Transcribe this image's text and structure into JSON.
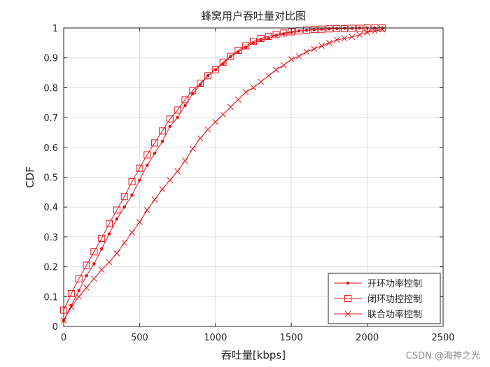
{
  "chart_data": {
    "type": "line",
    "title": "蜂窝用户吞吐量对比图",
    "xlabel": "吞吐量[kbps]",
    "ylabel": "CDF",
    "xlim": [
      0,
      2500
    ],
    "ylim": [
      0,
      1
    ],
    "xticks": [
      0,
      500,
      1000,
      1500,
      2000,
      2500
    ],
    "yticks": [
      0,
      0.1,
      0.2,
      0.3,
      0.4,
      0.5,
      0.6,
      0.7,
      0.8,
      0.9,
      1
    ],
    "grid": true,
    "legend_position": "bottom-right",
    "series": [
      {
        "name": "开环功率控制",
        "color": "#e8141c",
        "marker": "dot",
        "x": [
          0,
          50,
          100,
          150,
          200,
          250,
          300,
          350,
          400,
          450,
          500,
          550,
          600,
          650,
          700,
          750,
          800,
          850,
          900,
          950,
          1000,
          1050,
          1100,
          1150,
          1200,
          1250,
          1300,
          1350,
          1400,
          1450,
          1500,
          1550,
          1600,
          1650,
          1700,
          1750,
          1800,
          1850,
          1900,
          1950,
          2000,
          2050,
          2100
        ],
        "y": [
          0.02,
          0.07,
          0.12,
          0.17,
          0.21,
          0.26,
          0.31,
          0.36,
          0.4,
          0.44,
          0.49,
          0.54,
          0.58,
          0.62,
          0.67,
          0.7,
          0.74,
          0.78,
          0.81,
          0.84,
          0.86,
          0.88,
          0.905,
          0.92,
          0.935,
          0.95,
          0.96,
          0.965,
          0.975,
          0.98,
          0.985,
          0.99,
          0.992,
          0.994,
          0.996,
          0.997,
          0.998,
          0.999,
          0.999,
          1.0,
          1.0,
          1.0,
          1.0
        ]
      },
      {
        "name": "闭环功控控制",
        "color": "#e8141c",
        "marker": "square",
        "x": [
          0,
          50,
          100,
          150,
          200,
          250,
          300,
          350,
          400,
          450,
          500,
          550,
          600,
          650,
          700,
          750,
          800,
          850,
          900,
          950,
          1000,
          1050,
          1100,
          1150,
          1200,
          1250,
          1300,
          1350,
          1400,
          1450,
          1500,
          1550,
          1600,
          1650,
          1700,
          1750,
          1800,
          1850,
          1900,
          1950,
          2000,
          2050,
          2100
        ],
        "y": [
          0.055,
          0.11,
          0.16,
          0.205,
          0.25,
          0.295,
          0.345,
          0.39,
          0.435,
          0.485,
          0.53,
          0.575,
          0.615,
          0.655,
          0.695,
          0.725,
          0.76,
          0.79,
          0.815,
          0.84,
          0.86,
          0.885,
          0.905,
          0.925,
          0.94,
          0.955,
          0.965,
          0.972,
          0.978,
          0.983,
          0.987,
          0.99,
          0.993,
          0.995,
          0.996,
          0.997,
          0.998,
          0.998,
          0.999,
          0.999,
          1.0,
          1.0,
          1.0
        ]
      },
      {
        "name": "联合功率控制",
        "color": "#e8141c",
        "marker": "x",
        "x": [
          0,
          50,
          100,
          150,
          200,
          250,
          300,
          350,
          400,
          450,
          500,
          550,
          600,
          650,
          700,
          750,
          800,
          850,
          900,
          950,
          1000,
          1050,
          1100,
          1150,
          1200,
          1250,
          1300,
          1350,
          1400,
          1450,
          1500,
          1550,
          1600,
          1650,
          1700,
          1750,
          1800,
          1850,
          1900,
          1950,
          2000,
          2050,
          2100
        ],
        "y": [
          0.02,
          0.065,
          0.1,
          0.13,
          0.16,
          0.19,
          0.215,
          0.245,
          0.28,
          0.315,
          0.35,
          0.39,
          0.425,
          0.46,
          0.49,
          0.52,
          0.555,
          0.595,
          0.63,
          0.66,
          0.685,
          0.71,
          0.735,
          0.76,
          0.785,
          0.8,
          0.82,
          0.84,
          0.86,
          0.875,
          0.895,
          0.905,
          0.92,
          0.93,
          0.94,
          0.95,
          0.96,
          0.965,
          0.97,
          0.977,
          0.985,
          0.99,
          0.995
        ]
      }
    ]
  },
  "watermark": "CSDN @海神之光"
}
